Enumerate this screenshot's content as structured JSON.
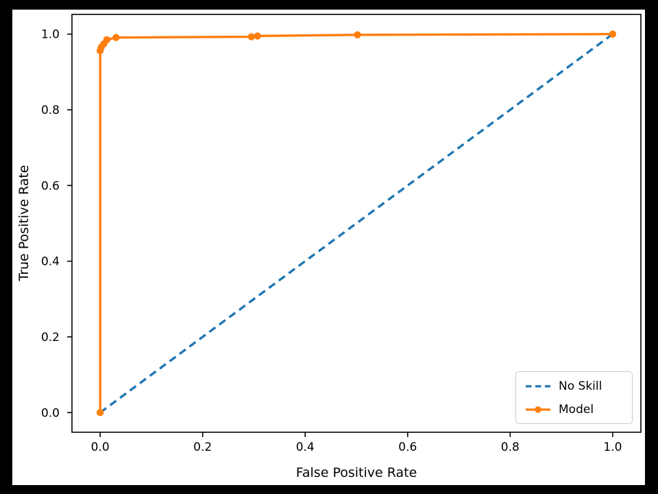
{
  "figure": {
    "frame_background": "#000000",
    "figure_background": "#ffffff",
    "spine_color": "#000000"
  },
  "chart_data": {
    "type": "line",
    "title": "",
    "xlabel": "False Positive Rate",
    "ylabel": "True Positive Rate",
    "xlim": [
      -0.055,
      1.055
    ],
    "ylim": [
      -0.052,
      1.052
    ],
    "xticks": [
      "0.0",
      "0.2",
      "0.4",
      "0.6",
      "0.8",
      "1.0"
    ],
    "yticks": [
      "0.0",
      "0.2",
      "0.4",
      "0.6",
      "0.8",
      "1.0"
    ],
    "grid": false,
    "legend_position": "lower-right",
    "series": [
      {
        "name": "No Skill",
        "color": "#1f77b4",
        "line_style": "dashed",
        "marker": "none",
        "x": [
          0.0,
          1.0
        ],
        "y": [
          0.0,
          1.0
        ]
      },
      {
        "name": "Model",
        "color": "#ff7f0e",
        "line_style": "solid",
        "marker": "circle",
        "x": [
          0.0,
          0.0,
          0.002,
          0.007,
          0.013,
          0.031,
          0.295,
          0.307,
          0.502,
          1.0
        ],
        "y": [
          0.0,
          0.956,
          0.965,
          0.974,
          0.985,
          0.991,
          0.993,
          0.995,
          0.998,
          1.0
        ]
      }
    ]
  }
}
